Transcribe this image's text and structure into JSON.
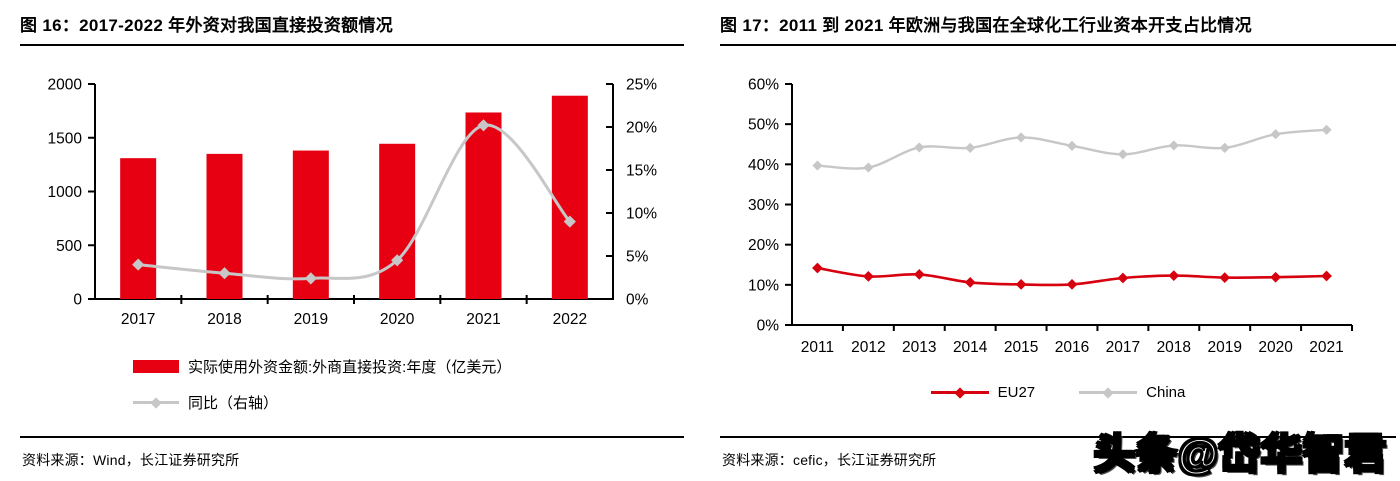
{
  "colors": {
    "bar_red": "#E60012",
    "line_red": "#D7000F",
    "line_gray": "#C7C7C7",
    "axis_black": "#000000"
  },
  "sources": [
    {
      "text": "资料来源：Wind，长江证券研究所"
    },
    {
      "text": "资料来源：cefic，长江证券研究所"
    }
  ],
  "watermark": "头条@岱华智君",
  "chart_data": [
    {
      "type": "bar+line",
      "title": "图  16：2017-2022 年外资对我国直接投资额情况",
      "categories": [
        "2017",
        "2018",
        "2019",
        "2020",
        "2021",
        "2022"
      ],
      "series": [
        {
          "name": "实际使用外资金额:外商直接投资:年度（亿美元）",
          "type": "bar",
          "axis": "left",
          "values": [
            1310,
            1350,
            1381,
            1444,
            1735,
            1891
          ]
        },
        {
          "name": "同比（右轴）",
          "type": "line",
          "axis": "right",
          "values": [
            4.0,
            3.0,
            2.4,
            4.5,
            20.2,
            9.0
          ]
        }
      ],
      "left_axis": {
        "min": 0,
        "max": 2000,
        "step": 500,
        "format": "number"
      },
      "right_axis": {
        "min": 0,
        "max": 25,
        "step": 5,
        "format": "percent"
      },
      "grid": false,
      "legend_position": "bottom-left"
    },
    {
      "type": "line",
      "title": "图  17：2011 到 2021 年欧洲与我国在全球化工行业资本开支占比情况",
      "categories": [
        "2011",
        "2012",
        "2013",
        "2014",
        "2015",
        "2016",
        "2017",
        "2018",
        "2019",
        "2020",
        "2021"
      ],
      "series": [
        {
          "name": "EU27",
          "color": "line_red",
          "values": [
            14.2,
            12.1,
            12.6,
            10.6,
            10.1,
            10.1,
            11.7,
            12.3,
            11.8,
            11.9,
            12.2
          ]
        },
        {
          "name": "China",
          "color": "line_gray",
          "values": [
            39.7,
            39.2,
            44.2,
            44.1,
            46.7,
            44.6,
            42.5,
            44.7,
            44.1,
            47.5,
            48.6
          ]
        }
      ],
      "y_axis": {
        "min": 0,
        "max": 60,
        "step": 10,
        "format": "percent"
      },
      "grid": false,
      "legend_position": "bottom-center"
    }
  ]
}
